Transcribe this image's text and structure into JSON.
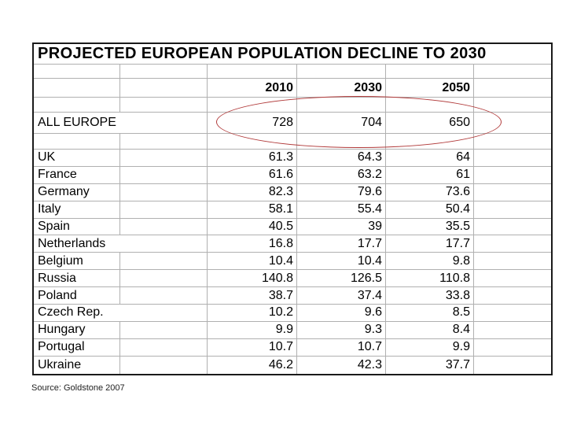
{
  "slide": {
    "source_note": "Source: Goldstone 2007"
  },
  "chart_data": {
    "type": "table",
    "title": "PROJECTED EUROPEAN POPULATION DECLINE TO 2030",
    "columns": [
      "2010",
      "2030",
      "2050"
    ],
    "summary_row": {
      "label": "ALL EUROPE",
      "values": [
        "728",
        "704",
        "650"
      ]
    },
    "rows": [
      {
        "label": "UK",
        "values": [
          "61.3",
          "64.3",
          "64"
        ]
      },
      {
        "label": "France",
        "values": [
          "61.6",
          "63.2",
          "61"
        ]
      },
      {
        "label": "Germany",
        "values": [
          "82.3",
          "79.6",
          "73.6"
        ]
      },
      {
        "label": "Italy",
        "values": [
          "58.1",
          "55.4",
          "50.4"
        ]
      },
      {
        "label": "Spain",
        "values": [
          "40.5",
          "39",
          "35.5"
        ]
      },
      {
        "label": "Netherlands",
        "values": [
          "16.8",
          "17.7",
          "17.7"
        ]
      },
      {
        "label": "Belgium",
        "values": [
          "10.4",
          "10.4",
          "9.8"
        ]
      },
      {
        "label": "Russia",
        "values": [
          "140.8",
          "126.5",
          "110.8"
        ]
      },
      {
        "label": "Poland",
        "values": [
          "38.7",
          "37.4",
          "33.8"
        ]
      },
      {
        "label": "Czech Rep.",
        "values": [
          "10.2",
          "9.6",
          "8.5"
        ]
      },
      {
        "label": "Hungary",
        "values": [
          "9.9",
          "9.3",
          "8.4"
        ]
      },
      {
        "label": "Portugal",
        "values": [
          "10.7",
          "10.7",
          "9.9"
        ]
      },
      {
        "label": "Ukraine",
        "values": [
          "46.2",
          "42.3",
          "37.7"
        ]
      }
    ],
    "annotations": [
      {
        "type": "ellipse",
        "target": "ALL EUROPE values",
        "color": "#b13a3a"
      }
    ],
    "grid": "on",
    "legend": "none"
  }
}
